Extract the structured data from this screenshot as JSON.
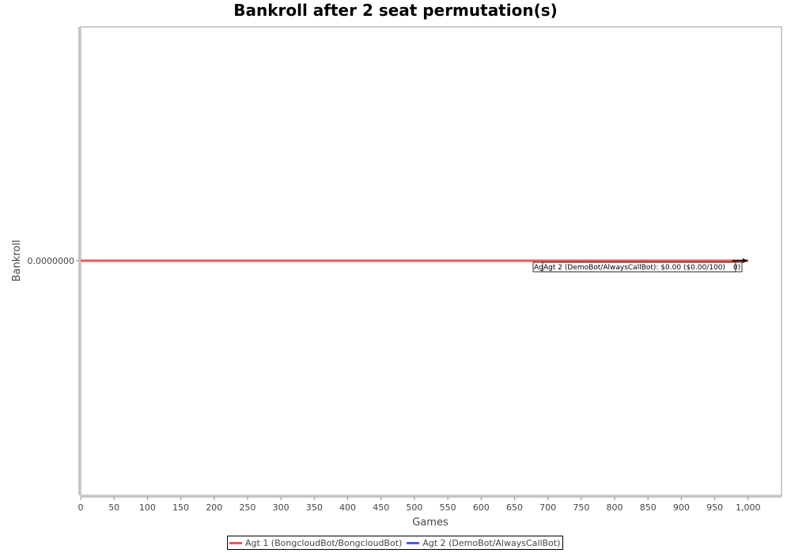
{
  "chart_data": {
    "type": "line",
    "title": "Bankroll after 2 seat permutation(s)",
    "xlabel": "Games",
    "ylabel": "Bankroll",
    "xlim": [
      0,
      1050
    ],
    "x_ticks": [
      0,
      50,
      100,
      150,
      200,
      250,
      300,
      350,
      400,
      450,
      500,
      550,
      600,
      650,
      700,
      750,
      800,
      850,
      900,
      950,
      1000
    ],
    "x_tick_labels": [
      "0",
      "50",
      "100",
      "150",
      "200",
      "250",
      "300",
      "350",
      "400",
      "450",
      "500",
      "550",
      "600",
      "650",
      "700",
      "750",
      "800",
      "850",
      "900",
      "950",
      "1,000"
    ],
    "y_ticks": [
      0
    ],
    "y_tick_labels": [
      "0.0000000"
    ],
    "grid": false,
    "legend_position": "bottom-center",
    "series": [
      {
        "name": "Agt 1 (BongcloudBot/BongcloudBot)",
        "color": "#f25555",
        "x": [
          0,
          1000
        ],
        "y": [
          0,
          0
        ]
      },
      {
        "name": "Agt 2 (DemoBot/AlwaysCallBot)",
        "color": "#5555f2",
        "x": [
          0,
          1000
        ],
        "y": [
          0,
          0
        ]
      }
    ],
    "annotations": [
      {
        "text_prefix": "Ag",
        "text": "Agt 2 (DemoBot/AlwaysCallBot): $0.00 ($0.00/100)",
        "text_suffix": "0)",
        "x": 1000,
        "y": 0
      }
    ]
  }
}
